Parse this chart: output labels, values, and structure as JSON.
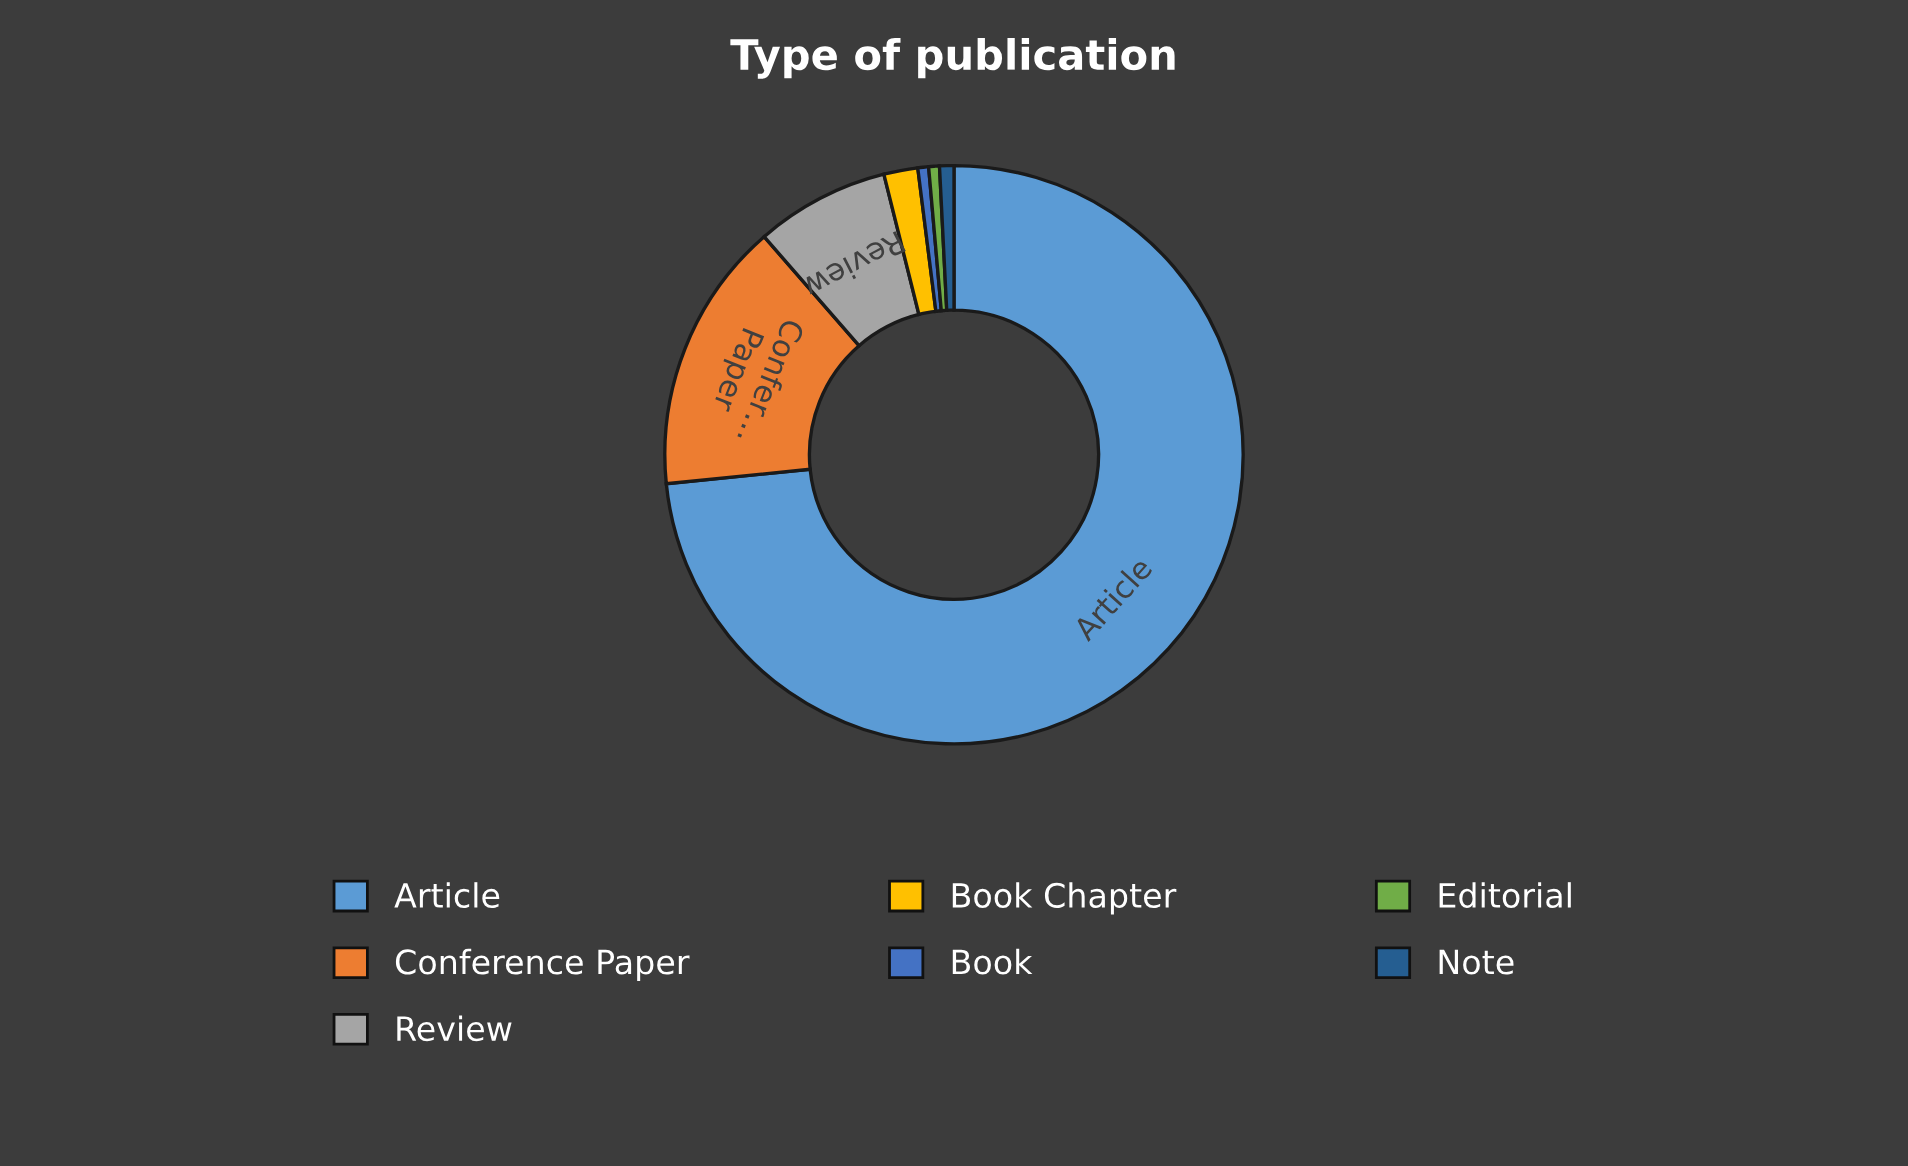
{
  "chart_data": {
    "type": "donut",
    "title": "Type of publication",
    "categories": [
      "Article",
      "Conference Paper",
      "Review",
      "Book Chapter",
      "Book",
      "Editorial",
      "Note"
    ],
    "values": [
      73.4,
      15.2,
      7.5,
      1.9,
      0.6,
      0.6,
      0.8
    ],
    "colors": [
      "#5b9bd5",
      "#ed7d31",
      "#a5a5a5",
      "#ffc000",
      "#4472c4",
      "#70ad47",
      "#255e91"
    ],
    "value_labels": [
      "Article",
      "Confer…\nPaper",
      "Review",
      null,
      null,
      null,
      null
    ],
    "legend": "bottom"
  }
}
